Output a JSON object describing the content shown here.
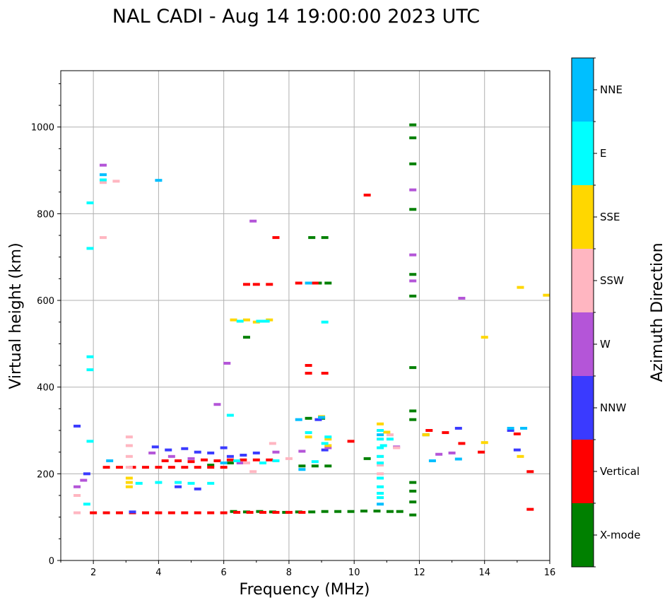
{
  "chart_data": {
    "type": "scatter",
    "title": "NAL CADI - Aug 14 19:00:00 2023 UTC",
    "xlabel": "Frequency (MHz)",
    "ylabel": "Virtual height (km)",
    "xlim": [
      1,
      16
    ],
    "ylim": [
      0,
      1130
    ],
    "x_ticks": [
      2,
      4,
      6,
      8,
      10,
      12,
      14,
      16
    ],
    "y_ticks": [
      0,
      200,
      400,
      600,
      800,
      1000
    ],
    "grid": true,
    "colorbar": {
      "label": "Azimuth Direction",
      "categories": [
        {
          "name": "X-mode",
          "color": "#008000"
        },
        {
          "name": "Vertical",
          "color": "#ff0000"
        },
        {
          "name": "NNW",
          "color": "#3a3aff"
        },
        {
          "name": "W",
          "color": "#b455d8"
        },
        {
          "name": "SSW",
          "color": "#ffb6c1"
        },
        {
          "name": "SSE",
          "color": "#ffd700"
        },
        {
          "name": "E",
          "color": "#00ffff"
        },
        {
          "name": "NNE",
          "color": "#00bfff"
        }
      ]
    },
    "series": [
      {
        "name": "X-mode",
        "points": [
          [
            6.3,
            113
          ],
          [
            6.7,
            112
          ],
          [
            7.1,
            113
          ],
          [
            7.5,
            112
          ],
          [
            7.9,
            111
          ],
          [
            8.3,
            112
          ],
          [
            8.7,
            112
          ],
          [
            9.1,
            113
          ],
          [
            9.5,
            113
          ],
          [
            9.9,
            113
          ],
          [
            10.3,
            114
          ],
          [
            10.7,
            114
          ],
          [
            11.1,
            113
          ],
          [
            11.4,
            113
          ],
          [
            6.7,
            515
          ],
          [
            8.6,
            328
          ],
          [
            9.0,
            328
          ],
          [
            9.2,
            640
          ],
          [
            8.9,
            640
          ],
          [
            8.7,
            745
          ],
          [
            9.1,
            745
          ],
          [
            8.4,
            218
          ],
          [
            8.8,
            218
          ],
          [
            9.2,
            218
          ],
          [
            11.8,
            1005
          ],
          [
            11.8,
            975
          ],
          [
            11.8,
            915
          ],
          [
            11.8,
            810
          ],
          [
            11.8,
            660
          ],
          [
            11.8,
            610
          ],
          [
            11.8,
            445
          ],
          [
            11.8,
            345
          ],
          [
            11.8,
            325
          ],
          [
            11.8,
            180
          ],
          [
            11.8,
            160
          ],
          [
            11.8,
            135
          ],
          [
            11.8,
            105
          ],
          [
            10.4,
            235
          ],
          [
            12.2,
            290
          ],
          [
            5.6,
            220
          ],
          [
            6.2,
            225
          ]
        ]
      },
      {
        "name": "Vertical",
        "points": [
          [
            2.0,
            110
          ],
          [
            2.4,
            110
          ],
          [
            2.8,
            110
          ],
          [
            3.2,
            110
          ],
          [
            3.6,
            110
          ],
          [
            4.0,
            110
          ],
          [
            4.4,
            110
          ],
          [
            4.8,
            110
          ],
          [
            5.2,
            110
          ],
          [
            5.6,
            110
          ],
          [
            6.0,
            110
          ],
          [
            6.4,
            111
          ],
          [
            6.8,
            111
          ],
          [
            7.2,
            111
          ],
          [
            7.6,
            111
          ],
          [
            8.0,
            111
          ],
          [
            8.4,
            111
          ],
          [
            2.4,
            215
          ],
          [
            2.8,
            215
          ],
          [
            3.2,
            215
          ],
          [
            3.6,
            215
          ],
          [
            4.0,
            215
          ],
          [
            4.4,
            215
          ],
          [
            4.8,
            215
          ],
          [
            5.2,
            215
          ],
          [
            5.6,
            215
          ],
          [
            6.0,
            215
          ],
          [
            4.2,
            230
          ],
          [
            4.6,
            230
          ],
          [
            5.0,
            228
          ],
          [
            5.4,
            232
          ],
          [
            5.8,
            230
          ],
          [
            6.2,
            232
          ],
          [
            6.6,
            232
          ],
          [
            7.0,
            232
          ],
          [
            7.4,
            232
          ],
          [
            6.7,
            637
          ],
          [
            7.0,
            637
          ],
          [
            7.4,
            637
          ],
          [
            8.3,
            640
          ],
          [
            8.6,
            450
          ],
          [
            8.6,
            432
          ],
          [
            9.1,
            432
          ],
          [
            7.6,
            745
          ],
          [
            10.4,
            843
          ],
          [
            9.9,
            275
          ],
          [
            12.3,
            300
          ],
          [
            12.8,
            295
          ],
          [
            13.3,
            270
          ],
          [
            13.9,
            250
          ],
          [
            15.0,
            292
          ],
          [
            15.4,
            205
          ],
          [
            15.4,
            118
          ],
          [
            8.8,
            640
          ]
        ]
      },
      {
        "name": "NNW",
        "points": [
          [
            1.5,
            310
          ],
          [
            3.9,
            262
          ],
          [
            4.3,
            255
          ],
          [
            4.8,
            258
          ],
          [
            5.2,
            250
          ],
          [
            5.6,
            248
          ],
          [
            6.2,
            240
          ],
          [
            6.6,
            243
          ],
          [
            7.0,
            248
          ],
          [
            9.1,
            255
          ],
          [
            13.2,
            305
          ],
          [
            14.8,
            300
          ],
          [
            15.0,
            255
          ],
          [
            1.8,
            200
          ],
          [
            4.6,
            170
          ],
          [
            5.2,
            165
          ],
          [
            6.0,
            260
          ],
          [
            3.2,
            112
          ],
          [
            8.9,
            325
          ]
        ]
      },
      {
        "name": "W",
        "points": [
          [
            1.5,
            170
          ],
          [
            1.7,
            185
          ],
          [
            2.3,
            912
          ],
          [
            3.8,
            248
          ],
          [
            4.4,
            240
          ],
          [
            5.0,
            235
          ],
          [
            6.1,
            455
          ],
          [
            6.9,
            783
          ],
          [
            7.6,
            250
          ],
          [
            8.4,
            252
          ],
          [
            9.2,
            260
          ],
          [
            11.8,
            855
          ],
          [
            11.8,
            705
          ],
          [
            11.8,
            645
          ],
          [
            12.6,
            245
          ],
          [
            13.0,
            248
          ],
          [
            13.3,
            605
          ],
          [
            11.3,
            262
          ],
          [
            6.5,
            225
          ],
          [
            5.8,
            360
          ]
        ]
      },
      {
        "name": "SSW",
        "points": [
          [
            1.5,
            110
          ],
          [
            1.5,
            150
          ],
          [
            2.3,
            745
          ],
          [
            2.3,
            872
          ],
          [
            2.7,
            875
          ],
          [
            3.1,
            285
          ],
          [
            3.1,
            265
          ],
          [
            3.1,
            240
          ],
          [
            3.1,
            215
          ],
          [
            6.9,
            205
          ],
          [
            7.5,
            270
          ],
          [
            10.8,
            240
          ],
          [
            10.8,
            220
          ],
          [
            10.8,
            200
          ],
          [
            11.1,
            290
          ],
          [
            11.3,
            260
          ],
          [
            6.7,
            225
          ],
          [
            8.0,
            235
          ]
        ]
      },
      {
        "name": "SSE",
        "points": [
          [
            3.1,
            190
          ],
          [
            3.1,
            180
          ],
          [
            3.1,
            170
          ],
          [
            6.7,
            555
          ],
          [
            7.0,
            550
          ],
          [
            7.4,
            555
          ],
          [
            8.6,
            285
          ],
          [
            9.2,
            280
          ],
          [
            9.2,
            265
          ],
          [
            10.8,
            315
          ],
          [
            11.0,
            296
          ],
          [
            12.2,
            290
          ],
          [
            14.0,
            515
          ],
          [
            14.0,
            272
          ],
          [
            15.1,
            630
          ],
          [
            15.1,
            240
          ],
          [
            15.9,
            612
          ],
          [
            6.3,
            555
          ],
          [
            8.6,
            640
          ],
          [
            9.0,
            332
          ]
        ]
      },
      {
        "name": "E",
        "points": [
          [
            1.9,
            825
          ],
          [
            1.9,
            720
          ],
          [
            1.9,
            470
          ],
          [
            1.9,
            440
          ],
          [
            1.9,
            275
          ],
          [
            1.8,
            130
          ],
          [
            2.3,
            878
          ],
          [
            3.4,
            178
          ],
          [
            4.0,
            180
          ],
          [
            4.6,
            180
          ],
          [
            5.0,
            178
          ],
          [
            5.6,
            178
          ],
          [
            6.2,
            335
          ],
          [
            6.5,
            552
          ],
          [
            7.1,
            552
          ],
          [
            7.3,
            552
          ],
          [
            8.6,
            295
          ],
          [
            9.1,
            550
          ],
          [
            9.2,
            285
          ],
          [
            9.1,
            270
          ],
          [
            8.8,
            228
          ],
          [
            10.8,
            300
          ],
          [
            10.8,
            280
          ],
          [
            10.8,
            260
          ],
          [
            10.8,
            240
          ],
          [
            10.8,
            225
          ],
          [
            10.8,
            190
          ],
          [
            10.8,
            170
          ],
          [
            10.8,
            155
          ],
          [
            10.8,
            145
          ],
          [
            11.1,
            280
          ],
          [
            10.9,
            265
          ],
          [
            6.4,
            230
          ],
          [
            7.2,
            225
          ],
          [
            7.6,
            230
          ]
        ]
      },
      {
        "name": "NNE",
        "points": [
          [
            2.3,
            890
          ],
          [
            4.0,
            877
          ],
          [
            8.3,
            325
          ],
          [
            8.6,
            640
          ],
          [
            9.0,
            330
          ],
          [
            12.4,
            230
          ],
          [
            13.2,
            234
          ],
          [
            14.8,
            305
          ],
          [
            15.2,
            305
          ],
          [
            8.4,
            210
          ],
          [
            10.8,
            290
          ],
          [
            10.8,
            130
          ],
          [
            2.5,
            230
          ],
          [
            6.0,
            225
          ]
        ]
      }
    ]
  }
}
